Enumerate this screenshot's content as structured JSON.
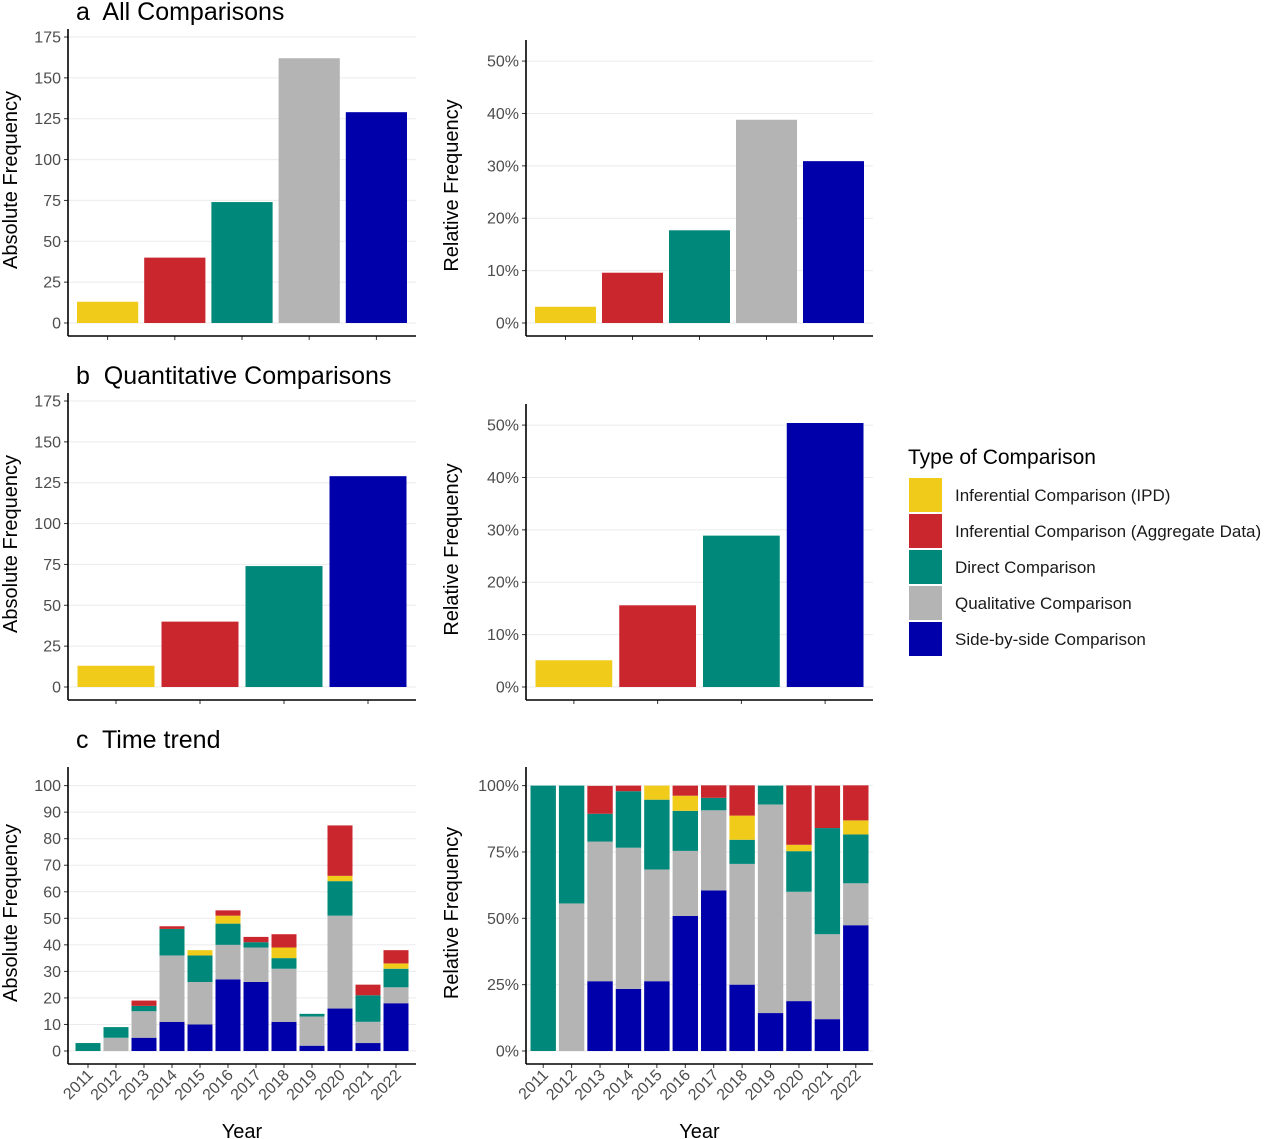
{
  "colors": {
    "Inferential Comparison (IPD)": "#f0cb1a",
    "Inferential Comparison (Aggregate Data)": "#c9262e",
    "Direct Comparison": "#00887a",
    "Qualitative Comparison": "#b4b4b4",
    "Side-by-side Comparison": "#0000aa"
  },
  "panel_titles": {
    "a": "a  All Comparisons",
    "b": "b  Quantitative Comparisons",
    "c": "c  Time trend"
  },
  "legend": {
    "title": "Type of Comparison",
    "items": [
      "Inferential Comparison (IPD)",
      "Inferential Comparison (Aggregate Data)",
      "Direct Comparison",
      "Qualitative Comparison",
      "Side-by-side Comparison"
    ]
  },
  "chart_data": [
    {
      "id": "a-abs",
      "type": "bar",
      "ylabel": "Absolute Frequency",
      "xlabel": "",
      "categories": [
        "Inferential Comparison (IPD)",
        "Inferential Comparison (Aggregate Data)",
        "Direct Comparison",
        "Qualitative Comparison",
        "Side-by-side Comparison"
      ],
      "values": [
        13,
        40,
        74,
        162,
        129
      ],
      "ylim": [
        0,
        175
      ],
      "yticks": [
        0,
        25,
        50,
        75,
        100,
        125,
        150,
        175
      ],
      "ytick_labels": [
        "0",
        "25",
        "50",
        "75",
        "100",
        "125",
        "150",
        "175"
      ],
      "grid": true
    },
    {
      "id": "a-rel",
      "type": "bar",
      "ylabel": "Relative Frequency",
      "xlabel": "",
      "categories": [
        "Inferential Comparison (IPD)",
        "Inferential Comparison (Aggregate Data)",
        "Direct Comparison",
        "Qualitative Comparison",
        "Side-by-side Comparison"
      ],
      "values": [
        3.1,
        9.6,
        17.7,
        38.8,
        30.9
      ],
      "ylim": [
        0,
        52.5
      ],
      "yticks": [
        0,
        10,
        20,
        30,
        40,
        50
      ],
      "ytick_labels": [
        "0%",
        "10%",
        "20%",
        "30%",
        "40%",
        "50%"
      ],
      "grid": true
    },
    {
      "id": "b-abs",
      "type": "bar",
      "ylabel": "Absolute Frequency",
      "xlabel": "",
      "categories": [
        "Inferential Comparison (IPD)",
        "Inferential Comparison (Aggregate Data)",
        "Direct Comparison",
        "Side-by-side Comparison"
      ],
      "values": [
        13,
        40,
        74,
        129
      ],
      "ylim": [
        0,
        175
      ],
      "yticks": [
        0,
        25,
        50,
        75,
        100,
        125,
        150,
        175
      ],
      "ytick_labels": [
        "0",
        "25",
        "50",
        "75",
        "100",
        "125",
        "150",
        "175"
      ],
      "grid": true
    },
    {
      "id": "b-rel",
      "type": "bar",
      "ylabel": "Relative Frequency",
      "xlabel": "",
      "categories": [
        "Inferential Comparison (IPD)",
        "Inferential Comparison (Aggregate Data)",
        "Direct Comparison",
        "Side-by-side Comparison"
      ],
      "values": [
        5.1,
        15.6,
        28.9,
        50.4
      ],
      "ylim": [
        0,
        52.5
      ],
      "yticks": [
        0,
        10,
        20,
        30,
        40,
        50
      ],
      "ytick_labels": [
        "0%",
        "10%",
        "20%",
        "30%",
        "40%",
        "50%"
      ],
      "grid": true
    },
    {
      "id": "c-abs",
      "type": "bar",
      "stacked": true,
      "ylabel": "Absolute Frequency",
      "xlabel": "Year",
      "categories": [
        "2011",
        "2012",
        "2013",
        "2014",
        "2015",
        "2016",
        "2017",
        "2018",
        "2019",
        "2020",
        "2021",
        "2022"
      ],
      "series": [
        {
          "name": "Side-by-side Comparison",
          "values": [
            0,
            0,
            5,
            11,
            10,
            27,
            26,
            11,
            2,
            16,
            3,
            18
          ]
        },
        {
          "name": "Qualitative Comparison",
          "values": [
            0,
            5,
            10,
            25,
            16,
            13,
            13,
            20,
            11,
            35,
            8,
            6
          ]
        },
        {
          "name": "Direct Comparison",
          "values": [
            3,
            4,
            2,
            10,
            10,
            8,
            2,
            4,
            1,
            13,
            10,
            7
          ]
        },
        {
          "name": "Inferential Comparison (IPD)",
          "values": [
            0,
            0,
            0,
            0,
            2,
            3,
            0,
            4,
            0,
            2,
            0,
            2
          ]
        },
        {
          "name": "Inferential Comparison (Aggregate Data)",
          "values": [
            0,
            0,
            2,
            1,
            0,
            2,
            2,
            5,
            0,
            19,
            4,
            5
          ]
        }
      ],
      "ylim": [
        0,
        104
      ],
      "yticks": [
        0,
        10,
        20,
        30,
        40,
        50,
        60,
        70,
        80,
        90,
        100
      ],
      "ytick_labels": [
        "0",
        "10",
        "20",
        "30",
        "40",
        "50",
        "60",
        "70",
        "80",
        "90",
        "100"
      ],
      "grid": true
    },
    {
      "id": "c-rel",
      "type": "bar",
      "stacked": true,
      "ylabel": "Relative Frequency",
      "xlabel": "Year",
      "categories": [
        "2011",
        "2012",
        "2013",
        "2014",
        "2015",
        "2016",
        "2017",
        "2018",
        "2019",
        "2020",
        "2021",
        "2022"
      ],
      "series": [
        {
          "name": "Side-by-side Comparison",
          "values": [
            0,
            0,
            26.3,
            23.4,
            26.3,
            50.9,
            60.5,
            25.0,
            14.3,
            18.8,
            12.0,
            47.4
          ]
        },
        {
          "name": "Qualitative Comparison",
          "values": [
            0,
            55.6,
            52.6,
            53.2,
            42.1,
            24.5,
            30.2,
            45.5,
            78.6,
            41.2,
            32.0,
            15.8
          ]
        },
        {
          "name": "Direct Comparison",
          "values": [
            100,
            44.4,
            10.5,
            21.3,
            26.3,
            15.1,
            4.7,
            9.1,
            7.1,
            15.3,
            40.0,
            18.4
          ]
        },
        {
          "name": "Inferential Comparison (IPD)",
          "values": [
            0,
            0,
            0,
            0,
            5.3,
            5.7,
            0,
            9.1,
            0,
            2.4,
            0,
            5.3
          ]
        },
        {
          "name": "Inferential Comparison (Aggregate Data)",
          "values": [
            0,
            0,
            10.5,
            2.1,
            0,
            3.8,
            4.7,
            11.4,
            0,
            22.4,
            16.0,
            13.2
          ]
        }
      ],
      "ylim": [
        0,
        104
      ],
      "yticks": [
        0,
        25,
        50,
        75,
        100
      ],
      "ytick_labels": [
        "0%",
        "25%",
        "50%",
        "75%",
        "100%"
      ],
      "grid": true
    }
  ]
}
